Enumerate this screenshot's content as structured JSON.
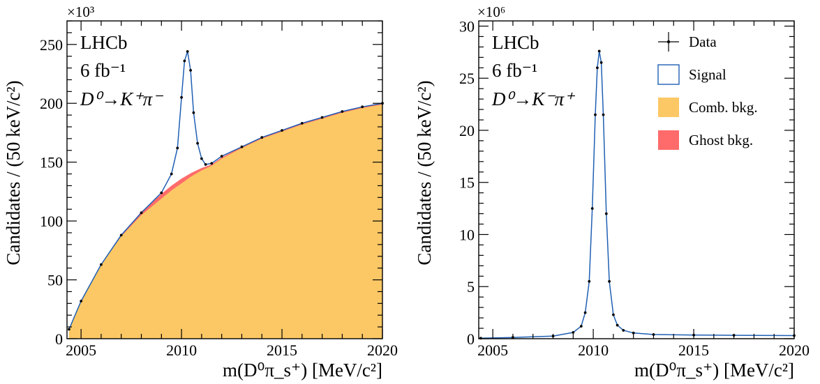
{
  "colors": {
    "comb_bkg": "#fcc865",
    "ghost_bkg": "#ff6b6b",
    "signal_line": "#1f5fb3",
    "data_marker": "#000000"
  },
  "chart_data": [
    {
      "type": "area",
      "title": "",
      "xlabel": "m(D⁰π_s⁺) [MeV/c²]",
      "ylabel": "Candidates / (50 keV/c²)",
      "y_exponent": "×10³",
      "xlim": [
        2004.3,
        2020
      ],
      "ylim": [
        0,
        270
      ],
      "x_ticks": [
        2005,
        2010,
        2015,
        2020
      ],
      "y_ticks": [
        0,
        50,
        100,
        150,
        200,
        250
      ],
      "annotations": [
        "LHCb",
        "6 fb⁻¹",
        "D⁰→K⁺π⁻"
      ],
      "series": [
        {
          "name": "Data",
          "style": "points",
          "x": [
            2004.4,
            2005,
            2006,
            2007,
            2008,
            2009,
            2009.5,
            2009.8,
            2010.0,
            2010.15,
            2010.3,
            2010.45,
            2010.6,
            2010.8,
            2011.0,
            2011.2,
            2011.5,
            2012,
            2013,
            2014,
            2015,
            2016,
            2017,
            2018,
            2019,
            2020
          ],
          "y": [
            8,
            32,
            63,
            88,
            107,
            124,
            140,
            162,
            205,
            236,
            244,
            228,
            192,
            166,
            153,
            148,
            149,
            155,
            163,
            171,
            177,
            183,
            188,
            193,
            197,
            200
          ]
        },
        {
          "name": "Signal",
          "style": "line",
          "x": [
            2004.4,
            2005,
            2006,
            2007,
            2008,
            2009,
            2009.5,
            2009.8,
            2010.0,
            2010.15,
            2010.3,
            2010.45,
            2010.6,
            2010.8,
            2011.0,
            2011.2,
            2011.5,
            2012,
            2013,
            2014,
            2015,
            2016,
            2017,
            2018,
            2019,
            2020
          ],
          "y": [
            8,
            32,
            63,
            88,
            107,
            124,
            140,
            162,
            205,
            236,
            244,
            228,
            192,
            166,
            153,
            148,
            149,
            155,
            163,
            171,
            177,
            183,
            188,
            193,
            197,
            200
          ]
        },
        {
          "name": "Ghost bkg.",
          "style": "area",
          "x": [
            2004.4,
            2005,
            2006,
            2007,
            2008,
            2009,
            2009.5,
            2010.0,
            2010.5,
            2011.0,
            2011.5,
            2012,
            2013,
            2014,
            2015,
            2016,
            2017,
            2018,
            2019,
            2020
          ],
          "y": [
            8,
            32,
            63,
            88,
            108,
            123,
            130,
            136,
            141,
            145,
            148,
            154,
            163,
            171,
            177,
            183,
            188,
            193,
            197,
            200
          ]
        },
        {
          "name": "Comb. bkg.",
          "style": "area",
          "x": [
            2004.4,
            2005,
            2006,
            2007,
            2008,
            2009,
            2009.5,
            2010.0,
            2010.5,
            2011.0,
            2011.5,
            2012,
            2013,
            2014,
            2015,
            2016,
            2017,
            2018,
            2019,
            2020
          ],
          "y": [
            8,
            32,
            63,
            87,
            105,
            119,
            126,
            132,
            138,
            143,
            147,
            153,
            162,
            170,
            176,
            182,
            187,
            192,
            196,
            199
          ]
        }
      ]
    },
    {
      "type": "line",
      "title": "",
      "xlabel": "m(D⁰π_s⁺) [MeV/c²]",
      "ylabel": "Candidates / (50 keV/c²)",
      "y_exponent": "×10⁶",
      "xlim": [
        2004.3,
        2020
      ],
      "ylim": [
        0,
        30.5
      ],
      "x_ticks": [
        2005,
        2010,
        2015,
        2020
      ],
      "y_ticks": [
        0,
        5,
        10,
        15,
        20,
        25,
        30
      ],
      "annotations": [
        "LHCb",
        "6 fb⁻¹",
        "D⁰→K⁻π⁺"
      ],
      "legend": {
        "position": "top-right",
        "entries": [
          "Data",
          "Signal",
          "Comb. bkg.",
          "Ghost bkg."
        ]
      },
      "series": [
        {
          "name": "Data",
          "style": "points",
          "x": [
            2004.4,
            2006,
            2008,
            2009,
            2009.4,
            2009.6,
            2009.8,
            2009.95,
            2010.1,
            2010.2,
            2010.3,
            2010.4,
            2010.5,
            2010.65,
            2010.8,
            2011.0,
            2011.2,
            2011.5,
            2012,
            2013,
            2015,
            2017,
            2020
          ],
          "y": [
            0.05,
            0.12,
            0.25,
            0.6,
            1.2,
            2.5,
            5.5,
            12.5,
            21.5,
            26.0,
            27.6,
            26.5,
            21.5,
            12.0,
            5.5,
            2.3,
            1.3,
            0.8,
            0.55,
            0.4,
            0.35,
            0.33,
            0.3
          ]
        },
        {
          "name": "Signal",
          "style": "line",
          "x": [
            2004.4,
            2006,
            2008,
            2009,
            2009.4,
            2009.6,
            2009.8,
            2009.95,
            2010.1,
            2010.2,
            2010.3,
            2010.4,
            2010.5,
            2010.65,
            2010.8,
            2011.0,
            2011.2,
            2011.5,
            2012,
            2013,
            2015,
            2017,
            2020
          ],
          "y": [
            0.05,
            0.12,
            0.25,
            0.6,
            1.2,
            2.5,
            5.5,
            12.5,
            21.5,
            26.0,
            27.6,
            26.5,
            21.5,
            12.0,
            5.5,
            2.3,
            1.3,
            0.8,
            0.55,
            0.4,
            0.35,
            0.33,
            0.3
          ]
        },
        {
          "name": "Comb. bkg.",
          "style": "area",
          "x": [
            2004.4,
            2020
          ],
          "y": [
            0.02,
            0.05
          ]
        },
        {
          "name": "Ghost bkg.",
          "style": "area",
          "x": [
            2004.4,
            2020
          ],
          "y": [
            0.01,
            0.02
          ]
        }
      ]
    }
  ]
}
